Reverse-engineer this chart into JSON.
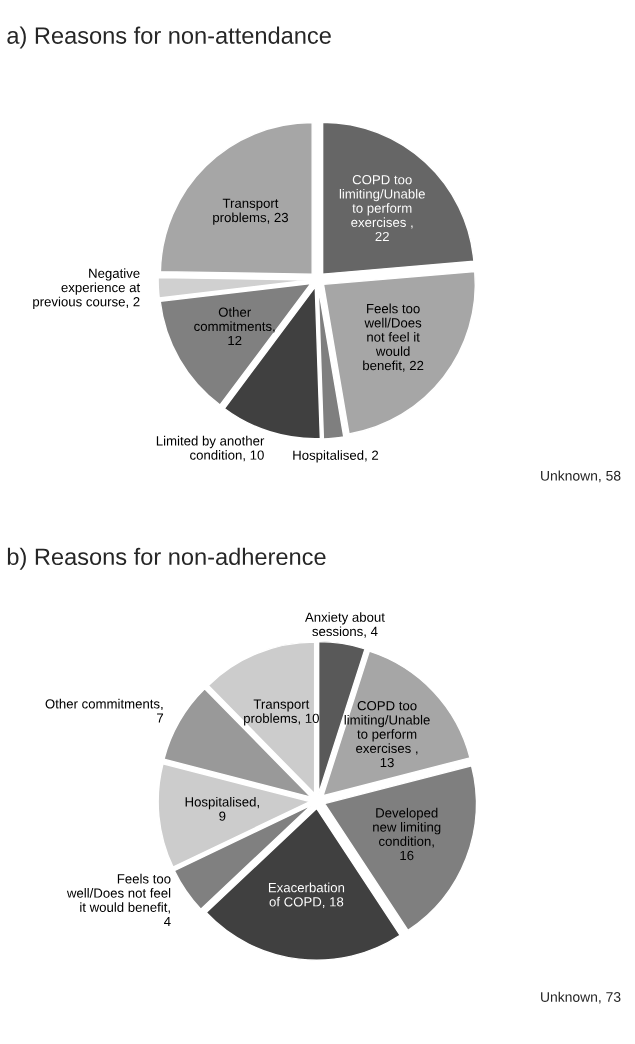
{
  "chart_data": [
    {
      "type": "pie",
      "title": "a) Reasons for non-attendance",
      "categories": [
        "COPD too limiting/Unable to perform exercises , 22",
        "Feels too well/Does not feel it would benefit, 22",
        "Hospitalised, 2",
        "Limited by another condition, 10",
        "Other commitments, 12",
        "Negative experience at previous course, 2",
        "Transport problems, 23"
      ],
      "values": [
        22,
        22,
        2,
        10,
        12,
        2,
        23
      ],
      "colors": [
        "#666666",
        "#a6a6a6",
        "#7f7f7f",
        "#404040",
        "#808080",
        "#d0d0d0",
        "#a6a6a6"
      ],
      "annotations": [
        "Unknown, 58"
      ]
    },
    {
      "type": "pie",
      "title": "b) Reasons for non-adherence",
      "categories": [
        "Anxiety about sessions, 4",
        "COPD too limiting/Unable to perform exercises , 13",
        "Developed new limiting condition, 16",
        "Exacerbation of COPD, 18",
        "Feels too well/Does not feel it would benefit, 4",
        "Hospitalised, 9",
        "Other commitments, 7",
        "Transport problems, 10"
      ],
      "values": [
        4,
        13,
        16,
        18,
        4,
        9,
        7,
        10
      ],
      "colors": [
        "#595959",
        "#a6a6a6",
        "#7f7f7f",
        "#404040",
        "#808080",
        "#cccccc",
        "#999999",
        "#cccccc"
      ],
      "annotations": [
        "Unknown, 73"
      ]
    }
  ]
}
